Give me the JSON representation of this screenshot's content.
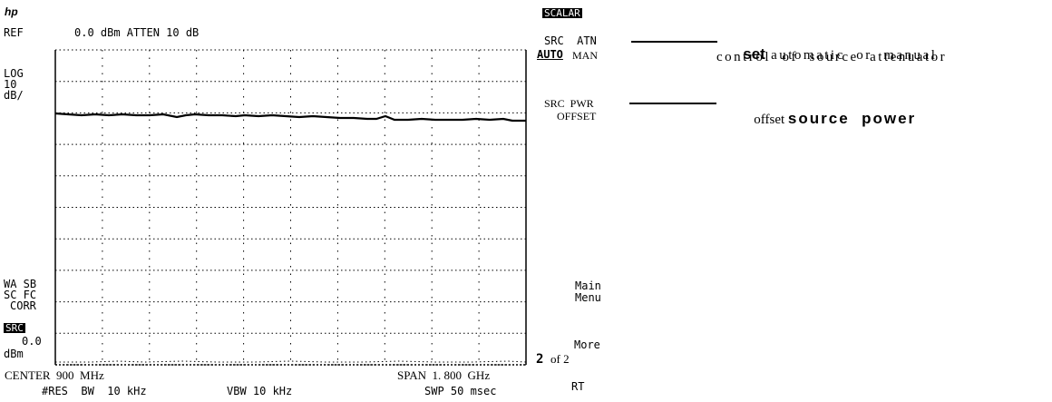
{
  "header": {
    "logo": "hp",
    "ref_label": "REF",
    "ref_value": "0.0 dBm ATTEN 10 dB"
  },
  "left_annotations": {
    "scale_type": "LOG",
    "scale_value": "10",
    "scale_unit": "dB/",
    "wa_sb": "WA SB",
    "sc_fc": "SC FC",
    "corr": "CORR",
    "src_label": "SRC",
    "src_value": "0.0",
    "src_unit": "dBm"
  },
  "footer": {
    "center": "CENTER  900  MHz",
    "span": "SPAN  1. 800  GHz",
    "res_bw": "#RES  BW  10 kHz",
    "vbw": "VBW 10 kHz",
    "swp": "SWP 50 msec"
  },
  "softkeys": {
    "menu_title": "SCALAR",
    "src_atn_line1": "SRC  ATN",
    "src_atn_auto": "AUTO",
    "src_atn_man": "MAN",
    "src_pwr_line1": "SRC  PWR",
    "src_pwr_line2": "OFFSET",
    "main_menu_1": "Main",
    "main_menu_2": "Menu",
    "more_1": "More",
    "more_page": "2",
    "more_2": "of 2",
    "rt": "RT"
  },
  "callouts": {
    "src_atn_bold": "set",
    "src_atn_rest": " automatic  or  manual",
    "src_atn_line2": "control  of  source  attenuator",
    "src_pwr_plain": "offset ",
    "src_pwr_bold": "source  power"
  },
  "colors": {
    "ink": "#000000",
    "paper": "#ffffff"
  }
}
